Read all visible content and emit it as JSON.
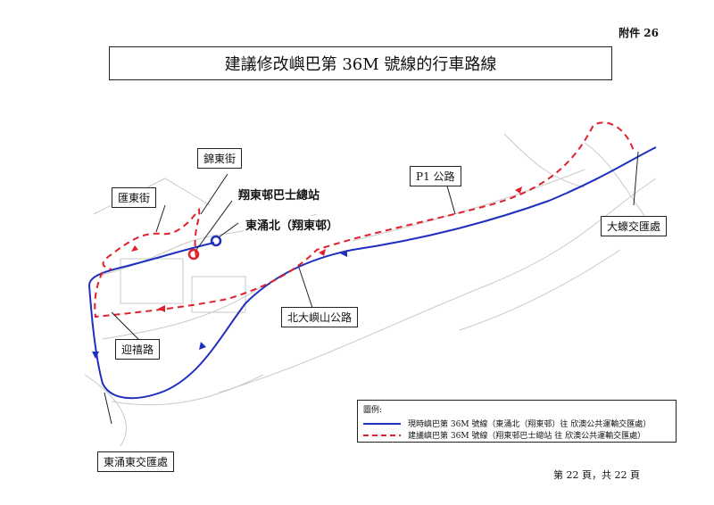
{
  "annex": "附件 26",
  "title": "建議修改嶼巴第 36M 號線的行車路線",
  "labels": {
    "kam_tung_street": "錦東街",
    "wui_tung_street": "匯東街",
    "cheung_tung_bus_terminus": "翔東邨巴士總站",
    "tung_chung_north": "東涌北（翔東邨）",
    "p1_road": "P1 公路",
    "tai_ho_interchange": "大蠔交匯處",
    "north_lantau_highway": "北大嶼山公路",
    "ying_hei_road": "迎禧路",
    "tung_chung_east_interchange": "東涌東交匯處"
  },
  "legend": {
    "title": "圖例:",
    "current_route": "現時嶼巴第 36M 號線（東涌北（翔東邨）往 欣澳公共運輸交匯處）",
    "proposed_route": "建議嶼巴第 36M 號線（翔東邨巴士總站 往 欣澳公共運輸交匯處）"
  },
  "colors": {
    "current_route": "#1f2fbf",
    "proposed_route": "#e0202a"
  },
  "footer": "第 22 頁，共 22 頁"
}
